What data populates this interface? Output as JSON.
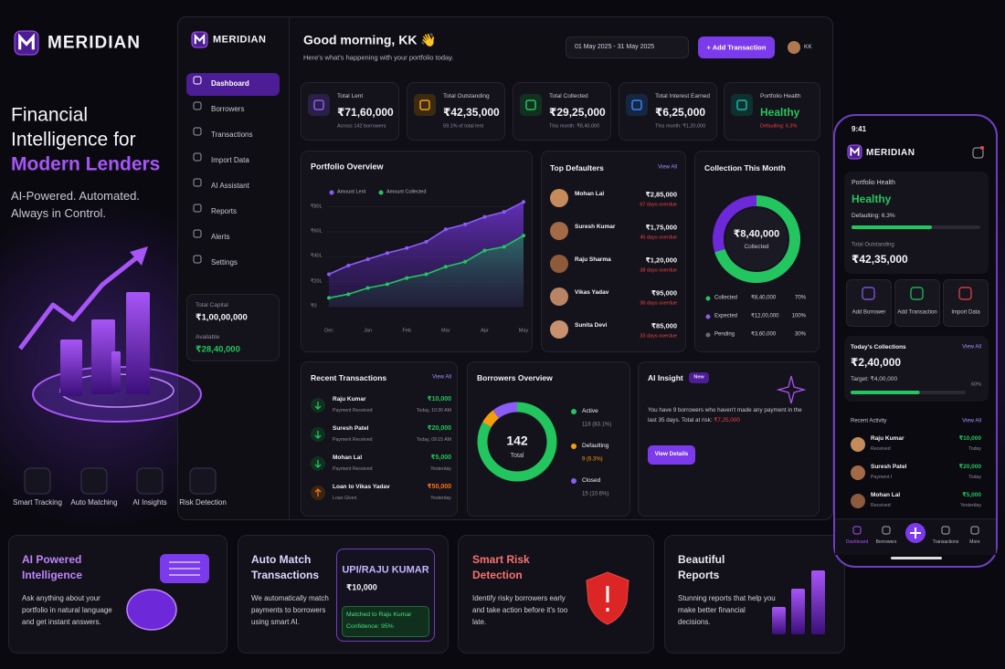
{
  "brand": "MERIDIAN",
  "hero": {
    "title_1": "Financial",
    "title_2": "Intelligence for",
    "title_highlight": "Modern Lenders",
    "tagline_1": "AI-Powered. Automated.",
    "tagline_2": "Always in Control."
  },
  "features": [
    "Smart Tracking",
    "Auto Matching",
    "AI Insights",
    "Risk Detection"
  ],
  "sidebar": {
    "brand": "MERIDIAN",
    "nav": [
      "Dashboard",
      "Borrowers",
      "Transactions",
      "Import Data",
      "AI Assistant",
      "Reports",
      "Alerts",
      "Settings"
    ],
    "capital_label": "Total Capital",
    "capital_value": "₹1,00,00,000",
    "available_label": "Available",
    "available_value": "₹28,40,000"
  },
  "header": {
    "greeting": "Good morning, KK 👋",
    "subtitle": "Here's what's happening with your portfolio today.",
    "date_range": "01 May 2025 - 31 May 2025",
    "add_button": "+ Add Transaction",
    "user": "KK"
  },
  "stats": [
    {
      "label": "Total Lent",
      "value": "₹71,60,000",
      "note": "Across 142 borrowers"
    },
    {
      "label": "Total Outstanding",
      "value": "₹42,35,000",
      "note": "59.1% of total lent"
    },
    {
      "label": "Total Collected",
      "value": "₹29,25,000",
      "note": "This month: ₹8,40,000"
    },
    {
      "label": "Total Interest Earned",
      "value": "₹6,25,000",
      "note": "This month: ₹1,20,000"
    },
    {
      "label": "Portfolio Health",
      "value": "Healthy",
      "note": "Defaulting: 6.3%"
    }
  ],
  "portfolio_overview": {
    "title": "Portfolio Overview",
    "categories": [
      "Dec",
      null,
      "Jan",
      null,
      "Feb",
      null,
      "Mar",
      null,
      "Apr",
      null,
      "May"
    ],
    "series": [
      {
        "name": "Amount Lent",
        "color": "#8b5cf6",
        "values": [
          26,
          33,
          38,
          43,
          47,
          52,
          62,
          66,
          72,
          76,
          84
        ]
      },
      {
        "name": "Amount Collected",
        "color": "#22c55e",
        "values": [
          7,
          10,
          15,
          18,
          23,
          26,
          32,
          36,
          45,
          48,
          57
        ]
      }
    ],
    "ylim": [
      0,
      90
    ],
    "yticks": [
      {
        "value": 0,
        "label": "₹0"
      },
      {
        "value": 20,
        "label": "₹20L"
      },
      {
        "value": 40,
        "label": "₹40L"
      },
      {
        "value": 60,
        "label": "₹60L"
      },
      {
        "value": 80,
        "label": "₹80L"
      }
    ]
  },
  "top_defaulters": {
    "title": "Top Defaulters",
    "view_all": "View All",
    "rows": [
      {
        "name": "Mohan Lal",
        "amount": "₹2,85,000",
        "overdue": "67 days overdue"
      },
      {
        "name": "Suresh Kumar",
        "amount": "₹1,75,000",
        "overdue": "45 days overdue"
      },
      {
        "name": "Raju Sharma",
        "amount": "₹1,20,000",
        "overdue": "38 days overdue"
      },
      {
        "name": "Vikas Yadav",
        "amount": "₹95,000",
        "overdue": "36 days overdue"
      },
      {
        "name": "Sunita Devi",
        "amount": "₹85,000",
        "overdue": "33 days overdue"
      }
    ]
  },
  "collection": {
    "title": "Collection This Month",
    "center_value": "₹8,40,000",
    "center_label": "Collected",
    "items": [
      {
        "name": "Collected",
        "amount": "₹8,40,000",
        "value": 70,
        "value_label": "70%"
      },
      {
        "name": "Expected",
        "amount": "₹12,00,000",
        "value": 100,
        "value_label": "100%"
      },
      {
        "name": "Pending",
        "amount": "₹3,60,000",
        "value": 30,
        "value_label": "30%"
      }
    ]
  },
  "recent_transactions": {
    "title": "Recent Transactions",
    "view_all": "View All",
    "rows": [
      {
        "name": "Raju Kumar",
        "type": "Payment Received",
        "amount": "₹10,000",
        "time": "Today, 10:30 AM"
      },
      {
        "name": "Suresh Patel",
        "type": "Payment Received",
        "amount": "₹20,000",
        "time": "Today, 09:15 AM"
      },
      {
        "name": "Mohan Lal",
        "type": "Payment Received",
        "amount": "₹5,000",
        "time": "Yesterday"
      },
      {
        "name": "Loan to Vikas Yadav",
        "type": "Loan Given",
        "amount": "₹50,000",
        "time": "Yesterday"
      }
    ]
  },
  "borrowers_overview": {
    "title": "Borrowers Overview",
    "total_value": 142,
    "total_label": "Total",
    "items": [
      {
        "name": "Active",
        "value": 83.1,
        "value_label": "118 (83.1%)"
      },
      {
        "name": "Defaulting",
        "value": 6.3,
        "value_label": "9 (6.3%)"
      },
      {
        "name": "Closed",
        "value": 10.6,
        "value_label": "15 (10.6%)"
      }
    ]
  },
  "ai_insight": {
    "title": "AI Insight",
    "badge": "New",
    "text": "You have 9 borrowers who haven't made any payment in the last 35 days. Total at risk: ",
    "risk": "₹7,25,000",
    "button": "View Details"
  },
  "mobile": {
    "time": "9:41",
    "brand": "MERIDIAN",
    "health_label": "Portfolio Health",
    "health_value": "Healthy",
    "defaulting": "Defaulting: 6.3%",
    "outstanding_label": "Total Outstanding",
    "outstanding_value": "₹42,35,000",
    "actions": [
      "Add Borrower",
      "Add Transaction",
      "Import Data"
    ],
    "today_label": "Today's Collections",
    "today_view_all": "View All",
    "today_value": "₹2,40,000",
    "target": "Target: ₹4,00,000",
    "progress": 60,
    "progress_label": "60%",
    "recent_label": "Recent Activity",
    "recent_view_all": "View All",
    "activity": [
      {
        "name": "Raju Kumar",
        "type": "Received",
        "amount": "₹10,000",
        "time": "Today"
      },
      {
        "name": "Suresh Patel",
        "type": "Payment I",
        "amount": "₹20,000",
        "time": "Today"
      },
      {
        "name": "Mohan Lal",
        "type": "Received",
        "amount": "₹5,000",
        "time": "Yesterday"
      }
    ],
    "tabs": [
      "Dashboard",
      "Borrowers",
      "Transactions",
      "More"
    ]
  },
  "promo_cards": [
    {
      "title": "AI Powered Intelligence",
      "text": "Ask anything about your portfolio in natural language and get instant answers."
    },
    {
      "title": "Auto Match Transactions",
      "text": "We automatically match payments to borrowers using smart AI.",
      "card_title": "UPI/RAJU KUMAR",
      "card_amount": "₹10,000",
      "card_match": "Matched to Raju Kumar",
      "card_confidence": "Confidence: 95%"
    },
    {
      "title": "Smart Risk Detection",
      "text": "Identify risky borrowers early and take action before it's too late."
    },
    {
      "title": "Beautiful Reports",
      "text": "Stunning reports that help you make better financial decisions."
    }
  ]
}
